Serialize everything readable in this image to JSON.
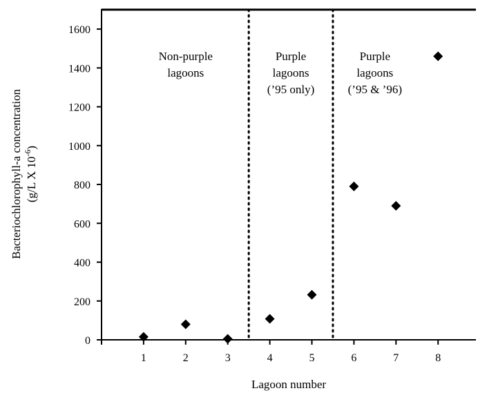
{
  "chart_data": {
    "type": "scatter",
    "xlabel": "Lagoon number",
    "ylabel_line1": "Bacteriochlorophyll-a concentration",
    "ylabel_line2": "(g/L X 10",
    "ylabel_exponent": "-6",
    "ylabel_close": ")",
    "xlim": [
      0,
      8.9
    ],
    "ylim": [
      0,
      1700
    ],
    "x_ticks": [
      "1",
      "2",
      "3",
      "4",
      "5",
      "6",
      "7",
      "8"
    ],
    "y_ticks": [
      "0",
      "200",
      "400",
      "600",
      "800",
      "1000",
      "1200",
      "1400",
      "1600"
    ],
    "marker": "diamond",
    "marker_color": "#000000",
    "grid": false,
    "points": [
      {
        "x": 1,
        "y": 15
      },
      {
        "x": 2,
        "y": 80
      },
      {
        "x": 3,
        "y": 5
      },
      {
        "x": 4,
        "y": 108
      },
      {
        "x": 5,
        "y": 232
      },
      {
        "x": 6,
        "y": 790
      },
      {
        "x": 7,
        "y": 690
      },
      {
        "x": 8,
        "y": 1460
      }
    ],
    "dividers": [
      3.5,
      5.5
    ],
    "regions": [
      {
        "lines": [
          "Non-purple",
          "lagoons"
        ],
        "center_x": 2
      },
      {
        "lines": [
          "Purple",
          "lagoons",
          "(’95 only)"
        ],
        "center_x": 4.5
      },
      {
        "lines": [
          "Purple",
          "lagoons",
          "(’95 & ’96)"
        ],
        "center_x": 6.5
      }
    ]
  }
}
